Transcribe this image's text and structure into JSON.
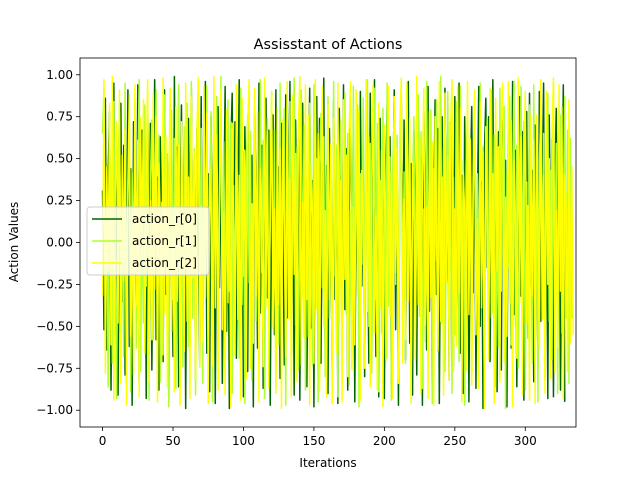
{
  "chart_data": {
    "type": "line",
    "title": "Assisstant of Actions",
    "xlabel": "Iterations",
    "ylabel": "Action Values",
    "xlim": [
      -16,
      336
    ],
    "ylim": [
      -1.1,
      1.1
    ],
    "xticks": [
      0,
      50,
      100,
      150,
      200,
      250,
      300
    ],
    "yticks": [
      -1.0,
      -0.75,
      -0.5,
      -0.25,
      0.0,
      0.25,
      0.5,
      0.75,
      1.0
    ],
    "ytick_labels": [
      "−1.00",
      "−0.75",
      "−0.50",
      "−0.25",
      "0.00",
      "0.25",
      "0.50",
      "0.75",
      "1.00"
    ],
    "xtick_labels": [
      "0",
      "50",
      "100",
      "150",
      "200",
      "250",
      "300"
    ],
    "grid": false,
    "legend_position": "center-left",
    "series": [
      {
        "name": "action_r[0]",
        "color": "#006400",
        "values": [
          0.31,
          -0.52,
          0.86,
          -0.64,
          0.42,
          0.78,
          -0.88,
          0.12,
          0.95,
          -0.47,
          0.66,
          -0.91,
          0.27,
          0.83,
          -0.35,
          0.58,
          -0.79,
          0.05,
          0.91,
          -0.62,
          0.44,
          -0.97,
          0.72,
          0.18,
          -0.41,
          0.94,
          -0.83,
          0.36,
          0.67,
          -0.22,
          0.53,
          -0.93,
          0.85,
          -0.14,
          0.71,
          -0.76,
          0.22,
          0.97,
          -0.58,
          0.39,
          -0.88,
          0.63,
          0.09,
          -0.71,
          0.91,
          -0.31,
          0.48,
          -0.95,
          0.77,
          0.26,
          -0.68,
          0.99,
          -0.44,
          0.57,
          -0.86,
          0.14,
          0.82,
          -0.39,
          0.65,
          -0.99,
          0.33,
          0.74,
          -0.57,
          0.92,
          -0.21,
          0.49,
          -0.82,
          0.68,
          0.03,
          -0.74,
          0.87,
          -0.48,
          0.29,
          0.96,
          -0.66,
          0.41,
          -0.89,
          0.75,
          -0.08,
          0.59,
          -0.96,
          0.38,
          0.81,
          -0.27,
          0.61,
          -0.84,
          0.17,
          0.93,
          -0.53,
          0.34,
          -0.99,
          0.56,
          0.89,
          -0.18,
          0.72,
          -0.69,
          0.24,
          0.97,
          -0.61,
          0.47,
          -0.92,
          0.69,
          0.11,
          -0.77,
          0.84,
          -0.36,
          0.52,
          -0.98,
          0.79,
          0.21,
          -0.63,
          0.95,
          -0.42,
          0.58,
          -0.87,
          0.16,
          0.86,
          -0.33,
          0.67,
          -0.97,
          0.28,
          0.76,
          -0.55,
          0.91,
          -0.24,
          0.45,
          -0.81,
          0.71,
          0.07,
          -0.73,
          0.88,
          -0.45,
          0.32,
          0.96,
          -0.67,
          0.43,
          -0.91,
          0.73,
          -0.11,
          0.62,
          -0.94,
          0.35,
          0.83,
          -0.29,
          0.64,
          -0.86,
          0.19,
          0.92,
          -0.51,
          0.37,
          -0.98,
          0.54,
          0.87,
          -0.16,
          0.74,
          -0.72,
          0.25,
          0.98,
          -0.59,
          0.46,
          -0.9,
          0.68,
          0.13,
          -0.78,
          0.85,
          -0.34,
          0.51,
          -0.96,
          0.8,
          0.23,
          -0.65,
          0.94,
          -0.4,
          0.56,
          -0.88,
          0.15,
          0.84,
          -0.32,
          0.69,
          -0.95,
          0.3,
          0.77,
          -0.54,
          0.9,
          -0.26,
          0.44,
          -0.8,
          0.7,
          0.06,
          -0.72,
          0.89,
          -0.46,
          0.31,
          0.97,
          -0.68,
          0.42,
          -0.92,
          0.74,
          -0.1,
          0.6,
          -0.93,
          0.36,
          0.82,
          -0.28,
          0.63,
          -0.85,
          0.2,
          0.91,
          -0.52,
          0.38,
          -0.97,
          0.55,
          0.88,
          -0.17,
          0.73,
          -0.7,
          0.26,
          0.96,
          -0.6,
          0.47,
          -0.91,
          0.67,
          0.12,
          -0.79,
          0.86,
          -0.35,
          0.5,
          -0.97,
          0.78,
          0.22,
          -0.64,
          0.93,
          -0.41,
          0.57,
          -0.89,
          0.14,
          0.85,
          -0.31,
          0.68,
          -0.96,
          0.29,
          0.75,
          -0.56,
          0.92,
          -0.23,
          0.46,
          -0.82,
          0.72,
          0.08,
          -0.74,
          0.87,
          -0.44,
          0.33,
          0.95,
          -0.66,
          0.4,
          -0.9,
          0.75,
          -0.12,
          0.61,
          -0.95,
          0.34,
          0.81,
          -0.3,
          0.65,
          -0.87,
          0.18,
          0.93,
          -0.5,
          0.36,
          -0.99,
          0.53,
          0.86,
          -0.15,
          0.75,
          -0.71,
          0.24,
          0.97,
          -0.62,
          0.48,
          -0.89,
          0.66,
          0.1,
          -0.76,
          0.83,
          -0.37,
          0.49,
          -0.98,
          0.81,
          0.2,
          -0.63,
          0.96,
          -0.43,
          0.55,
          -0.86,
          0.17,
          0.87,
          -0.32,
          0.66,
          -0.94,
          0.27,
          0.78,
          -0.57,
          0.89,
          -0.25,
          0.43,
          -0.83,
          0.7,
          0.04,
          -0.71,
          0.9,
          -0.47,
          0.3,
          0.95,
          -0.65,
          0.44,
          -0.93,
          0.76,
          -0.09,
          0.62,
          -0.92,
          0.37,
          0.8,
          -0.27,
          0.64,
          -0.88,
          0.21,
          0.94,
          -0.95
        ]
      },
      {
        "name": "action_r[1]",
        "color": "#adff2f",
        "values": [
          0.65,
          0.92,
          -0.43,
          0.21,
          -0.86,
          0.58,
          0.37,
          -0.72,
          0.84,
          -0.16,
          -0.93,
          0.49,
          0.77,
          -0.31,
          0.11,
          -0.68,
          0.95,
          -0.54,
          0.28,
          0.71,
          -0.89,
          0.42,
          -0.19,
          0.86,
          -0.63,
          0.33,
          0.97,
          -0.77,
          0.15,
          -0.48,
          0.82,
          -0.26,
          0.59,
          -0.94,
          0.38,
          0.73,
          -0.58,
          0.07,
          0.91,
          -0.39,
          0.64,
          -0.83,
          0.24,
          -0.67,
          0.88,
          -0.12,
          0.53,
          -0.98,
          0.45,
          0.79,
          -0.34,
          0.62,
          -0.87,
          0.19,
          0.94,
          -0.51,
          0.35,
          -0.74,
          0.69,
          -0.05,
          0.83,
          -0.62,
          0.27,
          0.96,
          -0.45,
          0.56,
          -0.91,
          0.13,
          0.75,
          -0.36,
          0.68,
          -0.84,
          0.41,
          -0.22,
          0.93,
          -0.57,
          0.31,
          0.78,
          -0.95,
          0.48,
          -0.14,
          0.87,
          -0.66,
          0.23,
          0.99,
          -0.42,
          0.6,
          -0.79,
          0.17,
          0.85,
          -0.29,
          0.72,
          -0.9,
          0.34,
          -0.53,
          0.81,
          0.09,
          -0.69,
          0.92,
          -0.37,
          0.54,
          -0.96,
          0.44,
          0.76,
          -0.24,
          0.66,
          -0.82,
          0.26,
          0.89,
          -0.47,
          0.39,
          -0.71,
          0.97,
          -0.18,
          0.61,
          -0.93,
          0.36,
          0.74,
          -0.55,
          0.12,
          0.9,
          -0.41,
          0.67,
          -0.86,
          0.22,
          -0.61,
          0.95,
          -0.33,
          0.52,
          0.8,
          -0.97,
          0.43,
          -0.1,
          0.84,
          -0.64,
          0.29,
          0.98,
          -0.49,
          0.57,
          -0.76,
          0.14,
          0.91,
          -0.32,
          0.7,
          -0.88,
          0.38,
          -0.56,
          0.83,
          0.05,
          -0.73,
          0.94,
          -0.35,
          0.5,
          -0.95,
          0.46,
          0.77,
          -0.27,
          0.63,
          -0.8,
          0.25,
          0.87,
          -0.45,
          0.4,
          -0.74,
          0.96,
          -0.2,
          0.58,
          -0.92,
          0.33,
          0.73,
          -0.52,
          0.16,
          0.89,
          -0.43,
          0.65,
          -0.85,
          0.19,
          -0.6,
          0.93,
          -0.3,
          0.55,
          0.82,
          -0.98,
          0.41,
          -0.13,
          0.86,
          -0.62,
          0.3,
          0.97,
          -0.5,
          0.59,
          -0.78,
          0.11,
          0.92,
          -0.34,
          0.71,
          -0.89,
          0.37,
          -0.54,
          0.8,
          0.08,
          -0.7,
          0.95,
          -0.38,
          0.51,
          -0.94,
          0.47,
          0.78,
          -0.25,
          0.64,
          -0.81,
          0.28,
          0.88,
          -0.46,
          0.42,
          -0.72,
          0.94,
          -0.17,
          0.6,
          -0.91,
          0.35,
          0.75,
          -0.53,
          0.14,
          0.88,
          -0.44,
          0.66,
          -0.87,
          0.2,
          -0.59,
          0.96,
          -0.31,
          0.53,
          0.79,
          -0.96,
          0.44,
          -0.11,
          0.85,
          -0.65,
          0.28,
          0.99,
          -0.48,
          0.56,
          -0.77,
          0.15,
          0.9,
          -0.33,
          0.69,
          -0.9,
          0.39,
          -0.55,
          0.84,
          0.06,
          -0.71,
          0.93,
          -0.36,
          0.49,
          -0.97,
          0.45,
          0.79,
          -0.26,
          0.62,
          -0.83,
          0.24,
          0.86,
          -0.44,
          0.41,
          -0.73,
          0.95,
          -0.21,
          0.57,
          -0.93,
          0.32,
          0.74,
          -0.51,
          0.18,
          0.91,
          -0.42,
          0.64,
          -0.86,
          0.21,
          -0.62,
          0.92,
          -0.29,
          0.54,
          0.81,
          -0.99,
          0.42,
          -0.15,
          0.87,
          -0.61,
          0.31,
          0.96,
          -0.5,
          0.58,
          -0.75,
          0.13,
          0.93,
          -0.35,
          0.72,
          -0.88,
          0.36,
          -0.57,
          0.82,
          0.07,
          -0.72,
          0.94,
          -0.39,
          0.52,
          -0.95,
          0.48,
          0.76,
          -0.23,
          0.65,
          -0.82,
          0.27,
          0.89,
          -0.47,
          0.43,
          -0.7,
          0.95,
          -0.19,
          0.59,
          -0.9,
          0.34,
          0.76,
          -0.54,
          0.15,
          0.87,
          -0.45,
          0.67,
          -0.84,
          0.62,
          -0.45
        ]
      },
      {
        "name": "action_r[2]",
        "color": "#ffff00",
        "values": [
          -0.32,
          0.97,
          -0.78,
          0.45,
          -0.15,
          0.83,
          -0.61,
          0.99,
          -0.94,
          0.28,
          0.72,
          -0.48,
          0.91,
          -0.84,
          0.52,
          -0.23,
          0.67,
          -0.97,
          0.36,
          0.88,
          -0.56,
          0.19,
          -0.79,
          0.94,
          -0.38,
          0.61,
          -0.92,
          0.74,
          -0.11,
          0.85,
          -0.66,
          0.41,
          0.97,
          -0.83,
          0.25,
          -0.58,
          0.89,
          -0.28,
          0.75,
          -0.95,
          0.47,
          0.13,
          -0.71,
          0.98,
          -0.42,
          0.63,
          -0.86,
          0.31,
          0.92,
          -0.53,
          0.17,
          -0.89,
          0.81,
          -0.35,
          0.58,
          -0.97,
          0.72,
          0.03,
          -0.65,
          0.95,
          -0.47,
          0.39,
          -0.93,
          0.87,
          -0.21,
          0.54,
          -0.82,
          0.68,
          0.98,
          -0.74,
          0.22,
          -0.59,
          0.93,
          -0.33,
          0.77,
          -0.96,
          0.45,
          0.16,
          -0.73,
          0.99,
          -0.39,
          0.64,
          -0.88,
          0.34,
          0.91,
          -0.52,
          0.18,
          -0.91,
          0.79,
          -0.36,
          0.57,
          -0.98,
          0.71,
          0.06,
          -0.67,
          0.94,
          -0.46,
          0.4,
          -0.94,
          0.86,
          -0.2,
          0.55,
          -0.81,
          0.69,
          0.97,
          -0.75,
          0.23,
          -0.6,
          0.92,
          -0.32,
          0.78,
          -0.95,
          0.44,
          0.14,
          -0.74,
          0.98,
          -0.38,
          0.66,
          -0.87,
          0.33,
          0.9,
          -0.51,
          0.2,
          -0.9,
          0.8,
          -0.37,
          0.56,
          -0.99,
          0.73,
          0.04,
          -0.68,
          0.96,
          -0.45,
          0.38,
          -0.92,
          0.88,
          -0.19,
          0.53,
          -0.83,
          0.7,
          0.99,
          -0.73,
          0.24,
          -0.57,
          0.94,
          -0.34,
          0.76,
          -0.97,
          0.46,
          0.15,
          -0.72,
          0.97,
          -0.4,
          0.65,
          -0.89,
          0.35,
          0.93,
          -0.5,
          0.19,
          -0.92,
          0.82,
          -0.34,
          0.59,
          -0.96,
          0.74,
          0.02,
          -0.66,
          0.95,
          -0.48,
          0.37,
          -0.95,
          0.85,
          -0.22,
          0.52,
          -0.8,
          0.67,
          0.96,
          -0.76,
          0.21,
          -0.61,
          0.91,
          -0.31,
          0.79,
          -0.94,
          0.43,
          0.17,
          -0.75,
          0.97,
          -0.41,
          0.63,
          -0.86,
          0.32,
          0.94,
          -0.54,
          0.16,
          -0.88,
          0.83,
          -0.38,
          0.55,
          -0.98,
          0.7,
          0.05,
          -0.69,
          0.93,
          -0.44,
          0.42,
          -0.93,
          0.87,
          -0.18,
          0.56,
          -0.84,
          0.71,
          0.98,
          -0.72,
          0.26,
          -0.58,
          0.95,
          -0.35,
          0.74,
          -0.96,
          0.48,
          0.12,
          -0.7,
          0.99,
          -0.37,
          0.62,
          -0.9,
          0.36,
          0.92,
          -0.49,
          0.21,
          -0.93,
          0.78,
          -0.33,
          0.6,
          -0.97,
          0.75,
          0.07,
          -0.64,
          0.96,
          -0.47,
          0.39,
          -0.91,
          0.89,
          -0.24,
          0.51,
          -0.82,
          0.66,
          0.97,
          -0.77,
          0.2,
          -0.62,
          0.93,
          -0.3,
          0.8,
          -0.95,
          0.42,
          0.18,
          -0.76,
          0.96,
          -0.43,
          0.61,
          -0.85,
          0.37,
          0.91,
          -0.55,
          0.14,
          -0.87,
          0.84,
          -0.39,
          0.54,
          -0.99,
          0.69,
          0.08,
          -0.7,
          0.92,
          -0.45,
          0.41,
          -0.96,
          0.86,
          -0.17,
          0.57,
          -0.83,
          0.72,
          0.95,
          -0.71,
          0.27,
          -0.56,
          0.96,
          -0.36,
          0.73,
          -0.98,
          0.49,
          0.11,
          -0.69,
          0.98,
          -0.36,
          0.63,
          -0.91,
          0.38,
          0.9,
          -0.48,
          0.22,
          -0.94,
          0.77,
          -0.32,
          0.61,
          -0.96,
          0.76,
          0.09,
          -0.63,
          0.97,
          -0.46,
          0.4,
          -0.9,
          0.9,
          -0.25,
          0.5,
          -0.81,
          0.65,
          0.98,
          -0.78,
          0.19,
          -0.63,
          0.94,
          -0.29,
          0.81,
          -0.93,
          0.41,
          0.2,
          -0.77,
          0.85,
          -0.6,
          0.45,
          -0.55
        ]
      }
    ]
  }
}
